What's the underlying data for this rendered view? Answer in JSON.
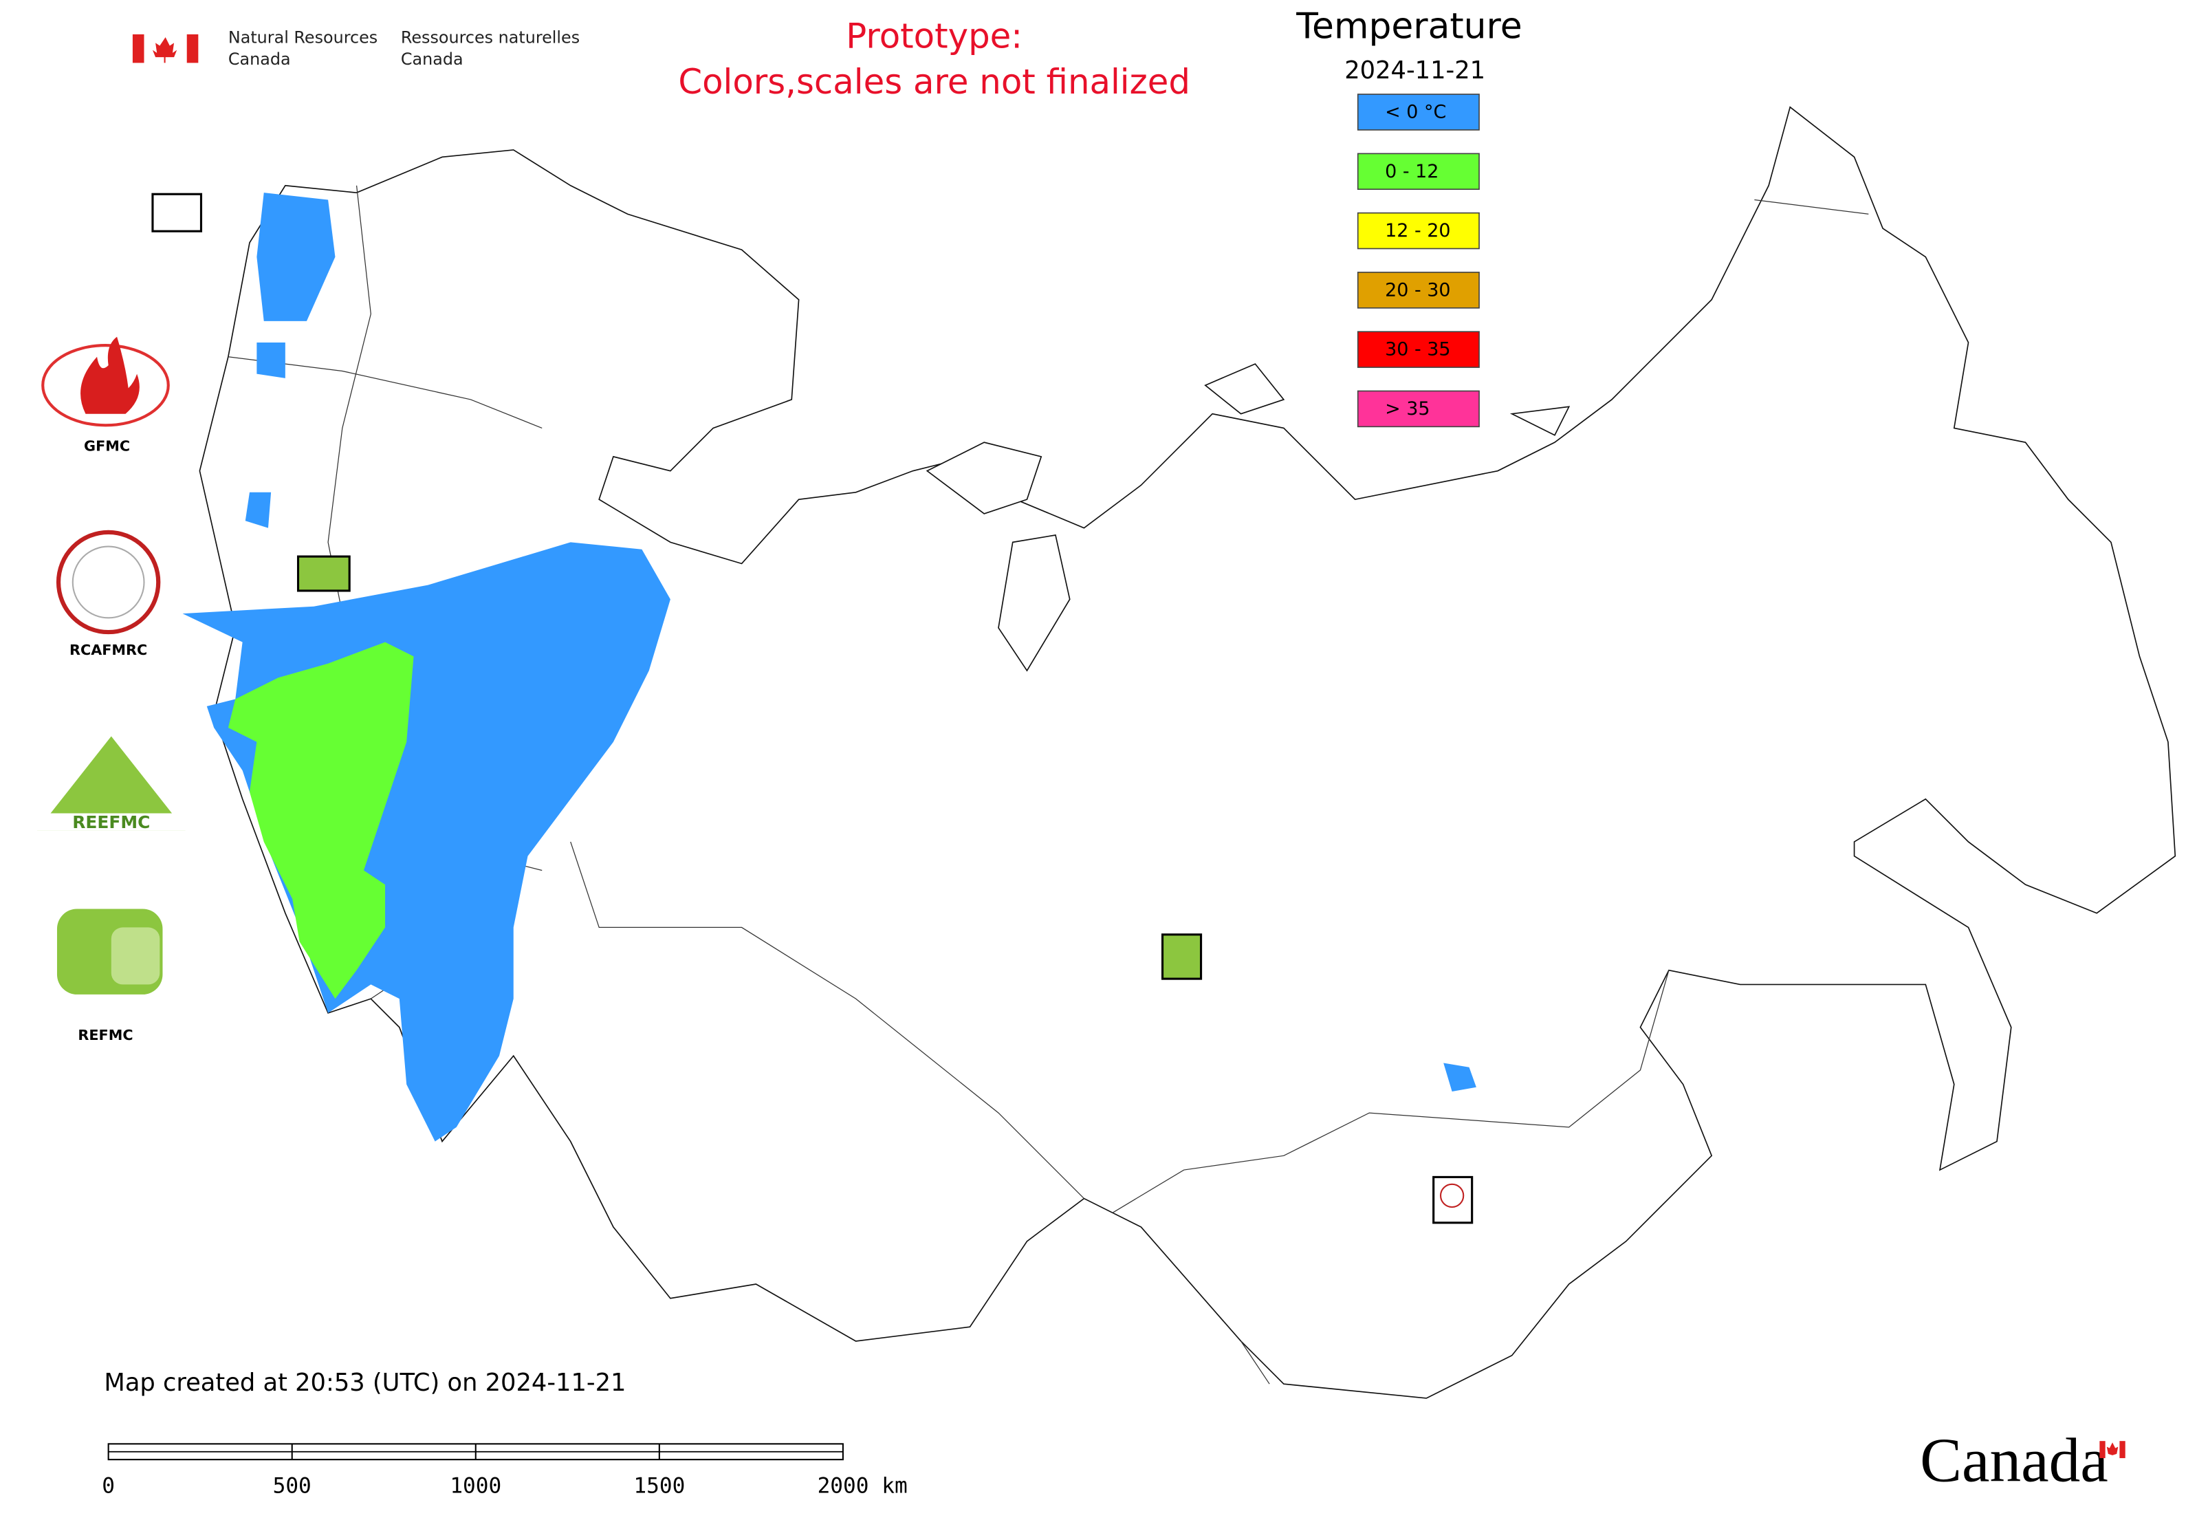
{
  "header": {
    "dept_en": [
      "Natural Resources",
      "Canada"
    ],
    "dept_fr": [
      "Ressources naturelles",
      "Canada"
    ]
  },
  "notice": [
    "Prototype:",
    "Colors,scales are not finalized"
  ],
  "legend": {
    "title": "Temperature",
    "date": "2024-11-21",
    "items": [
      {
        "label": "< 0 °C",
        "color": "#3399ff"
      },
      {
        "label": "0 - 12",
        "color": "#66ff33"
      },
      {
        "label": "12 - 20",
        "color": "#ffff00"
      },
      {
        "label": "20 - 30",
        "color": "#e0a000"
      },
      {
        "label": "30 - 35",
        "color": "#ff0000"
      },
      {
        "label": "> 35",
        "color": "#ff3399"
      }
    ]
  },
  "logos": [
    "GFMC",
    "RCAFMRC",
    "REEFMC",
    "REFMC"
  ],
  "footer": "Map created at 20:53 (UTC) on 2024-11-21",
  "scale_bar": [
    "0",
    "500",
    "1000",
    "1500",
    "2000 km"
  ],
  "wordmark": "Canada"
}
